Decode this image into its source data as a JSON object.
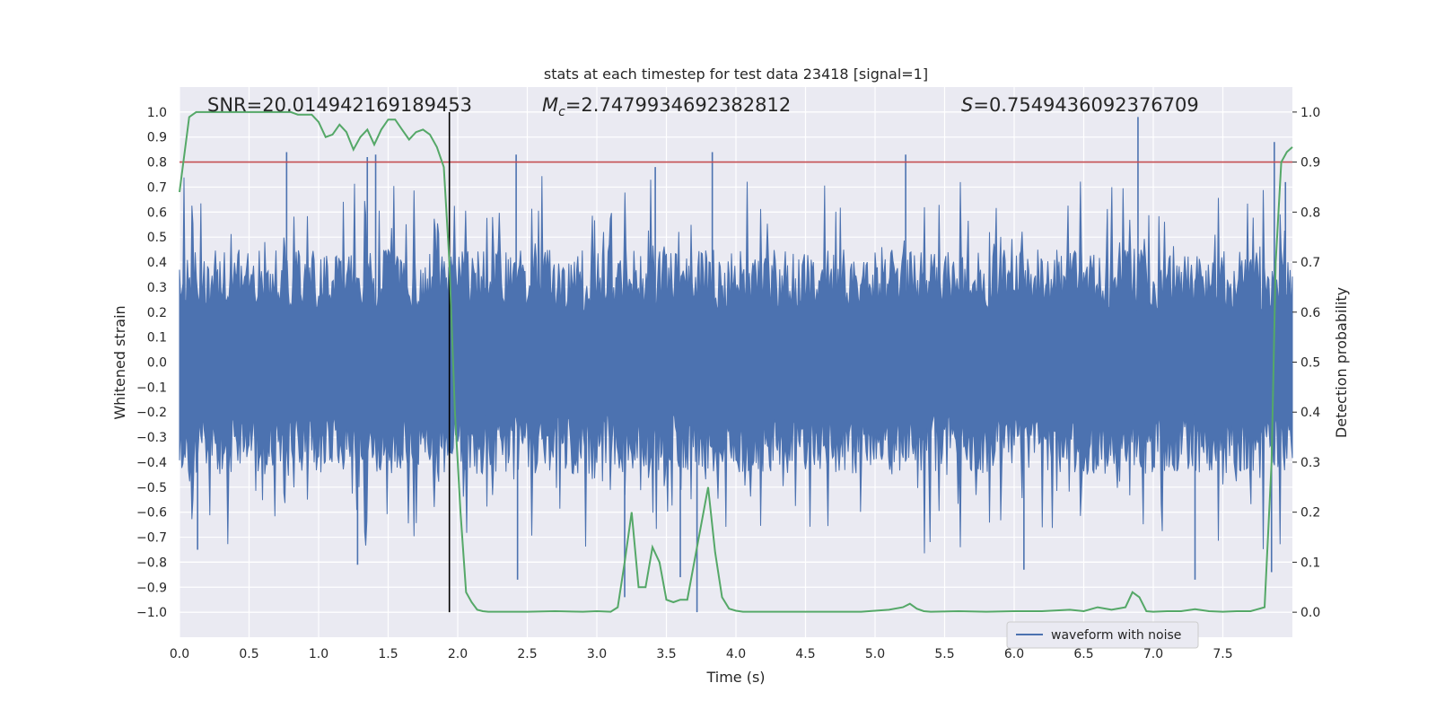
{
  "chart_data": {
    "type": "line",
    "title": "stats at each timestep for test data 23418 [signal=1]",
    "xlabel": "Time (s)",
    "ylabel_left": "Whitened strain",
    "ylabel_right": "Detection probability",
    "xlim": [
      0.0,
      8.0
    ],
    "ylim_left": [
      -1.1,
      1.1
    ],
    "ylim_right": [
      -0.05,
      1.05
    ],
    "xticks": [
      "0.0",
      "0.5",
      "1.0",
      "1.5",
      "2.0",
      "2.5",
      "3.0",
      "3.5",
      "4.0",
      "4.5",
      "5.0",
      "5.5",
      "6.0",
      "6.5",
      "7.0",
      "7.5"
    ],
    "yticks_left": [
      "1.0",
      "0.9",
      "0.8",
      "0.7",
      "0.6",
      "0.5",
      "0.4",
      "0.3",
      "0.2",
      "0.1",
      "0.0",
      "−0.1",
      "−0.2",
      "−0.3",
      "−0.4",
      "−0.5",
      "−0.6",
      "−0.7",
      "−0.8",
      "−0.9",
      "−1.0"
    ],
    "yticks_right": [
      "1.0",
      "0.9",
      "0.8",
      "0.7",
      "0.6",
      "0.5",
      "0.4",
      "0.3",
      "0.2",
      "0.1",
      "0.0"
    ],
    "grid": true,
    "legend": {
      "entries": [
        "waveform with noise"
      ],
      "position": "lower-right"
    },
    "annotations": {
      "snr": "SNR=20.014942169189453",
      "mc_prefix": "M",
      "mc_sub": "c",
      "mc_value": "=2.7479934692382812",
      "s_prefix": "S",
      "s_value": "=0.7549436092376709"
    },
    "threshold_line": {
      "axis": "right",
      "value": 0.9,
      "color": "#c44e52"
    },
    "event_marker": {
      "x": 1.94,
      "color": "#000000"
    },
    "series": [
      {
        "name": "waveform with noise",
        "axis": "left",
        "color": "#4c72b0",
        "envelope_pos": 0.45,
        "envelope_neg": -0.45,
        "notable_peaks": [
          [
            0.77,
            0.84
          ],
          [
            1.35,
            0.82
          ],
          [
            1.41,
            0.83
          ],
          [
            2.42,
            0.83
          ],
          [
            3.42,
            0.78
          ],
          [
            3.83,
            0.84
          ],
          [
            5.22,
            0.83
          ],
          [
            6.89,
            0.98
          ],
          [
            7.87,
            0.88
          ],
          [
            7.95,
            0.72
          ]
        ],
        "notable_troughs": [
          [
            0.13,
            -0.75
          ],
          [
            1.28,
            -0.81
          ],
          [
            2.43,
            -0.87
          ],
          [
            3.2,
            -0.94
          ],
          [
            3.6,
            -0.86
          ],
          [
            3.72,
            -1.0
          ],
          [
            6.07,
            -0.83
          ],
          [
            7.3,
            -0.87
          ],
          [
            7.85,
            -0.84
          ]
        ]
      },
      {
        "name": "Detection probability",
        "axis": "right",
        "color": "#55a868",
        "x": [
          0.0,
          0.07,
          0.12,
          0.2,
          0.3,
          0.4,
          0.5,
          0.6,
          0.7,
          0.8,
          0.85,
          0.9,
          0.95,
          1.0,
          1.05,
          1.1,
          1.15,
          1.2,
          1.25,
          1.3,
          1.35,
          1.4,
          1.45,
          1.5,
          1.55,
          1.6,
          1.65,
          1.7,
          1.75,
          1.8,
          1.85,
          1.9,
          1.94,
          1.98,
          2.02,
          2.06,
          2.1,
          2.14,
          2.18,
          2.22,
          2.3,
          2.5,
          2.7,
          2.9,
          3.0,
          3.1,
          3.15,
          3.2,
          3.25,
          3.3,
          3.35,
          3.4,
          3.45,
          3.5,
          3.55,
          3.6,
          3.65,
          3.7,
          3.8,
          3.85,
          3.9,
          3.95,
          4.0,
          4.05,
          4.1,
          4.3,
          4.6,
          4.9,
          5.1,
          5.2,
          5.25,
          5.3,
          5.35,
          5.4,
          5.6,
          5.8,
          6.0,
          6.2,
          6.4,
          6.5,
          6.6,
          6.7,
          6.8,
          6.85,
          6.9,
          6.95,
          7.0,
          7.1,
          7.2,
          7.3,
          7.4,
          7.5,
          7.6,
          7.7,
          7.8,
          7.85,
          7.88,
          7.92,
          7.96,
          8.0
        ],
        "y": [
          0.84,
          0.99,
          1.0,
          1.0,
          1.0,
          1.0,
          1.0,
          1.0,
          1.0,
          1.0,
          0.995,
          0.995,
          0.995,
          0.98,
          0.95,
          0.955,
          0.975,
          0.96,
          0.925,
          0.95,
          0.965,
          0.935,
          0.965,
          0.985,
          0.985,
          0.965,
          0.945,
          0.96,
          0.965,
          0.955,
          0.93,
          0.89,
          0.7,
          0.4,
          0.2,
          0.04,
          0.02,
          0.005,
          0.002,
          0.001,
          0.001,
          0.001,
          0.002,
          0.001,
          0.002,
          0.001,
          0.01,
          0.1,
          0.2,
          0.05,
          0.05,
          0.13,
          0.1,
          0.025,
          0.02,
          0.025,
          0.025,
          0.1,
          0.25,
          0.12,
          0.03,
          0.007,
          0.003,
          0.001,
          0.001,
          0.001,
          0.001,
          0.001,
          0.005,
          0.01,
          0.017,
          0.007,
          0.002,
          0.001,
          0.002,
          0.001,
          0.002,
          0.002,
          0.005,
          0.002,
          0.01,
          0.005,
          0.01,
          0.04,
          0.03,
          0.002,
          0.001,
          0.002,
          0.002,
          0.006,
          0.002,
          0.001,
          0.002,
          0.002,
          0.01,
          0.3,
          0.7,
          0.9,
          0.92,
          0.93
        ]
      }
    ]
  }
}
